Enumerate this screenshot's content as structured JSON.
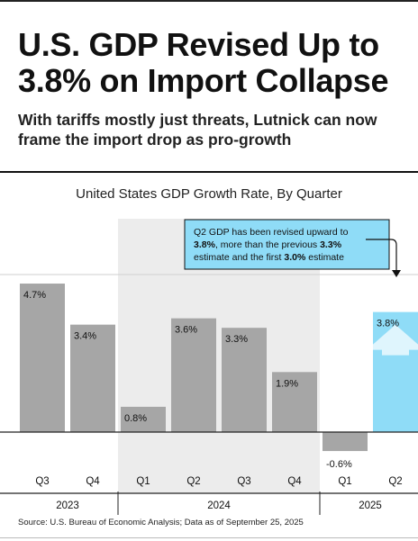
{
  "headline": "U.S. GDP Revised Up to 3.8% on Import Collapse",
  "subhead": "With tariffs mostly just threats, Lutnick can now frame the import drop as pro-growth",
  "source": "Source: U.S. Bureau of Economic Analysis; Data as of September 25, 2025",
  "annotation": {
    "line1_pre": "Q2 GDP has been revised upward to",
    "line2_bold": "3.8%",
    "line2_rest": ", more than the previous ",
    "line2_bold2": "3.3%",
    "line3_pre": "estimate and the first ",
    "line3_bold": "3.0%",
    "line3_post": " estimate"
  },
  "colors": {
    "bar": "#a6a6a6",
    "highlight_bar": "#8fdcf7",
    "highlight_arrow": "#dff5fd",
    "shade": "#ececec",
    "annotation_fill": "#8fdcf7",
    "axis": "#222222"
  },
  "chart_data": {
    "type": "bar",
    "title": "United States GDP Growth Rate, By Quarter",
    "xlabel": "",
    "ylabel": "",
    "unit": "%",
    "ylim": [
      -0.6,
      4.8
    ],
    "grid": false,
    "categories": [
      "Q3",
      "Q4",
      "Q1",
      "Q2",
      "Q3",
      "Q4",
      "Q1",
      "Q2"
    ],
    "years": [
      "2023",
      "2023",
      "2024",
      "2024",
      "2024",
      "2024",
      "2025",
      "2025"
    ],
    "year_groups": [
      {
        "label": "2023",
        "count": 2
      },
      {
        "label": "2024",
        "count": 4
      },
      {
        "label": "2025",
        "count": 2
      }
    ],
    "values": [
      4.7,
      3.4,
      0.8,
      3.6,
      3.3,
      1.9,
      -0.6,
      3.8
    ],
    "labels": [
      "4.7%",
      "3.4%",
      "0.8%",
      "3.6%",
      "3.3%",
      "1.9%",
      "-0.6%",
      "3.8%"
    ],
    "highlight_index": 7,
    "shaded_year": "2024"
  }
}
